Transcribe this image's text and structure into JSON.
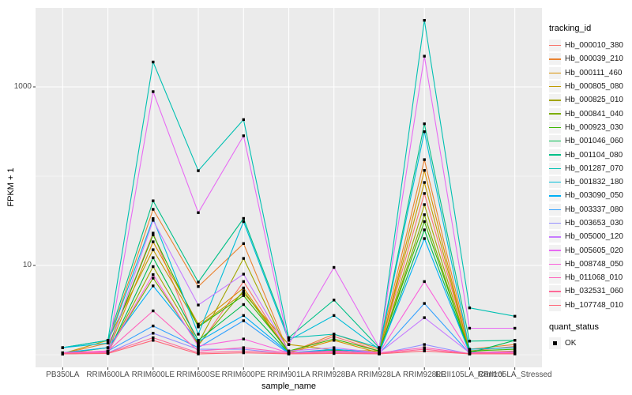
{
  "chart_data": {
    "type": "line",
    "title": "",
    "xlabel": "sample_name",
    "ylabel": "FPKM + 1",
    "y_scale": "log10",
    "y_axis_range_log10": [
      -0.2,
      3.93
    ],
    "grid": true,
    "panel_bg": "#EBEBEB",
    "grid_color": "#FFFFFF",
    "axis_text_color": "#4D4D4D",
    "point_color": "#000000",
    "y_ticks": [
      {
        "label": "1000",
        "value": 1000
      },
      {
        "label": "10",
        "value": 10
      }
    ],
    "y_minor_values": [
      100,
      1
    ],
    "categories": [
      "PB350LA",
      "RRIM600LA",
      "RRIM600LE",
      "RRIM600SE",
      "RRIM600PE",
      "RRIM901LA",
      "RRIM928BA",
      "RRIM928LA",
      "RRIM928LE",
      "RRII105LA_Control",
      "RRII105LA_Stressed"
    ],
    "legends": [
      {
        "title": "tracking_id"
      },
      {
        "title": "quant_status",
        "items": [
          "OK"
        ]
      }
    ],
    "series": [
      {
        "name": "Hb_000010_380",
        "color": "#F8766D",
        "values": [
          1.03,
          1.2,
          23.0,
          1.25,
          6.6,
          1.05,
          1.6,
          1.1,
          64.0,
          1.1,
          1.24
        ]
      },
      {
        "name": "Hb_000039_210",
        "color": "#EA8331",
        "values": [
          1.03,
          1.35,
          42.5,
          5.8,
          17.6,
          1.05,
          1.7,
          1.15,
          153,
          1.15,
          1.3
        ]
      },
      {
        "name": "Hb_000111_460",
        "color": "#D89000",
        "values": [
          1.02,
          1.1,
          18.4,
          2.2,
          5.6,
          1.05,
          1.45,
          1.05,
          116,
          1.05,
          1.1
        ]
      },
      {
        "name": "Hb_000805_080",
        "color": "#C09B00",
        "values": [
          1.03,
          1.45,
          15.0,
          2.1,
          4.9,
          1.3,
          1.13,
          1.1,
          85.0,
          1.08,
          1.05
        ]
      },
      {
        "name": "Hb_000825_010",
        "color": "#A3A500",
        "values": [
          1.02,
          1.05,
          9.7,
          1.35,
          12.0,
          1.05,
          1.1,
          1.03,
          48.0,
          1.05,
          1.03
        ]
      },
      {
        "name": "Hb_000841_040",
        "color": "#7CAE00",
        "values": [
          1.02,
          1.1,
          7.2,
          1.3,
          5.2,
          1.05,
          1.08,
          1.05,
          37.0,
          1.03,
          1.05
        ]
      },
      {
        "name": "Hb_000923_030",
        "color": "#39B600",
        "values": [
          1.03,
          1.2,
          22.0,
          2.05,
          4.6,
          1.1,
          1.5,
          1.1,
          31.0,
          1.1,
          1.15
        ]
      },
      {
        "name": "Hb_001046_060",
        "color": "#00BB4E",
        "values": [
          1.02,
          1.05,
          12.2,
          1.45,
          3.65,
          1.05,
          1.12,
          1.03,
          25.0,
          1.05,
          1.45
        ]
      },
      {
        "name": "Hb_001104_080",
        "color": "#00C087",
        "values": [
          1.2,
          1.45,
          53.0,
          6.5,
          33.6,
          1.55,
          4.1,
          1.2,
          386,
          1.42,
          1.45
        ]
      },
      {
        "name": "Hb_001287_070",
        "color": "#00C0B2",
        "values": [
          1.2,
          1.45,
          1900,
          115,
          430,
          1.55,
          1.7,
          1.2,
          5570,
          3.35,
          2.7
        ]
      },
      {
        "name": "Hb_001832_180",
        "color": "#00BCD8",
        "values": [
          1.2,
          1.35,
          33.5,
          1.7,
          31.0,
          1.45,
          2.75,
          1.15,
          315,
          1.15,
          1.2
        ]
      },
      {
        "name": "Hb_003090_050",
        "color": "#00B0F6",
        "values": [
          1.05,
          1.2,
          5.9,
          1.4,
          2.75,
          1.05,
          1.15,
          1.05,
          20.0,
          1.05,
          1.08
        ]
      },
      {
        "name": "Hb_003337_080",
        "color": "#35A2FF",
        "values": [
          1.03,
          1.1,
          2.1,
          1.2,
          2.4,
          1.03,
          1.1,
          1.03,
          3.75,
          1.03,
          1.05
        ]
      },
      {
        "name": "Hb_003653_030",
        "color": "#9590FF",
        "values": [
          1.02,
          1.05,
          1.74,
          1.15,
          1.15,
          1.02,
          1.05,
          1.02,
          1.3,
          1.02,
          1.03
        ]
      },
      {
        "name": "Hb_005000_120",
        "color": "#C77CFF",
        "values": [
          1.03,
          1.08,
          32.0,
          3.6,
          8.0,
          1.1,
          1.2,
          1.05,
          2.6,
          1.05,
          1.05
        ]
      },
      {
        "name": "Hb_005605_020",
        "color": "#E76BF3",
        "values": [
          1.05,
          1.1,
          885,
          39.0,
          283,
          1.3,
          9.5,
          1.2,
          2210,
          1.98,
          1.98
        ]
      },
      {
        "name": "Hb_008748_050",
        "color": "#FA62DB",
        "values": [
          1.03,
          1.08,
          7.9,
          1.25,
          1.5,
          1.05,
          1.1,
          1.05,
          6.6,
          1.05,
          1.08
        ]
      },
      {
        "name": "Hb_011068_010",
        "color": "#FF62BC",
        "values": [
          1.05,
          1.1,
          3.1,
          1.1,
          1.2,
          1.05,
          1.08,
          1.05,
          1.2,
          1.03,
          1.05
        ]
      },
      {
        "name": "Hb_032531_060",
        "color": "#FF6A98",
        "values": [
          1.03,
          1.05,
          1.55,
          1.05,
          1.1,
          1.03,
          1.05,
          1.03,
          1.15,
          1.02,
          1.03
        ]
      },
      {
        "name": "Hb_107748_010",
        "color": "#FF6577",
        "values": [
          1.02,
          1.03,
          1.45,
          1.02,
          1.05,
          1.02,
          1.03,
          1.02,
          1.1,
          1.02,
          1.02
        ]
      }
    ]
  }
}
